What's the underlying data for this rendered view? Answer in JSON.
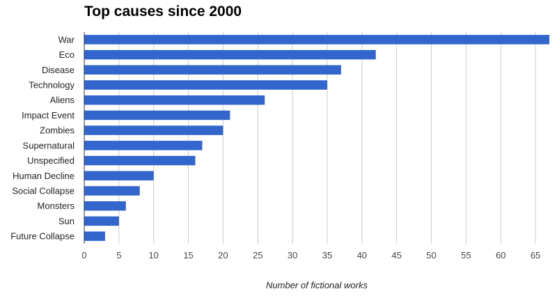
{
  "chart_data": {
    "type": "bar",
    "orientation": "horizontal",
    "title": "Top causes since 2000",
    "xlabel": "Number of fictional works",
    "ylabel": "",
    "categories": [
      "War",
      "Eco",
      "Disease",
      "Technology",
      "Aliens",
      "Impact Event",
      "Zombies",
      "Supernatural",
      "Unspecified",
      "Human Decline",
      "Social Collapse",
      "Monsters",
      "Sun",
      "Future Collapse"
    ],
    "values": [
      67,
      42,
      37,
      35,
      26,
      21,
      20,
      17,
      16,
      10,
      8,
      6,
      5,
      3
    ],
    "xlim": [
      0,
      67
    ],
    "xticks": [
      "0",
      "5",
      "10",
      "15",
      "20",
      "25",
      "30",
      "35",
      "40",
      "45",
      "50",
      "55",
      "60",
      "65"
    ],
    "grid": true,
    "bar_color": "#3366cc"
  }
}
